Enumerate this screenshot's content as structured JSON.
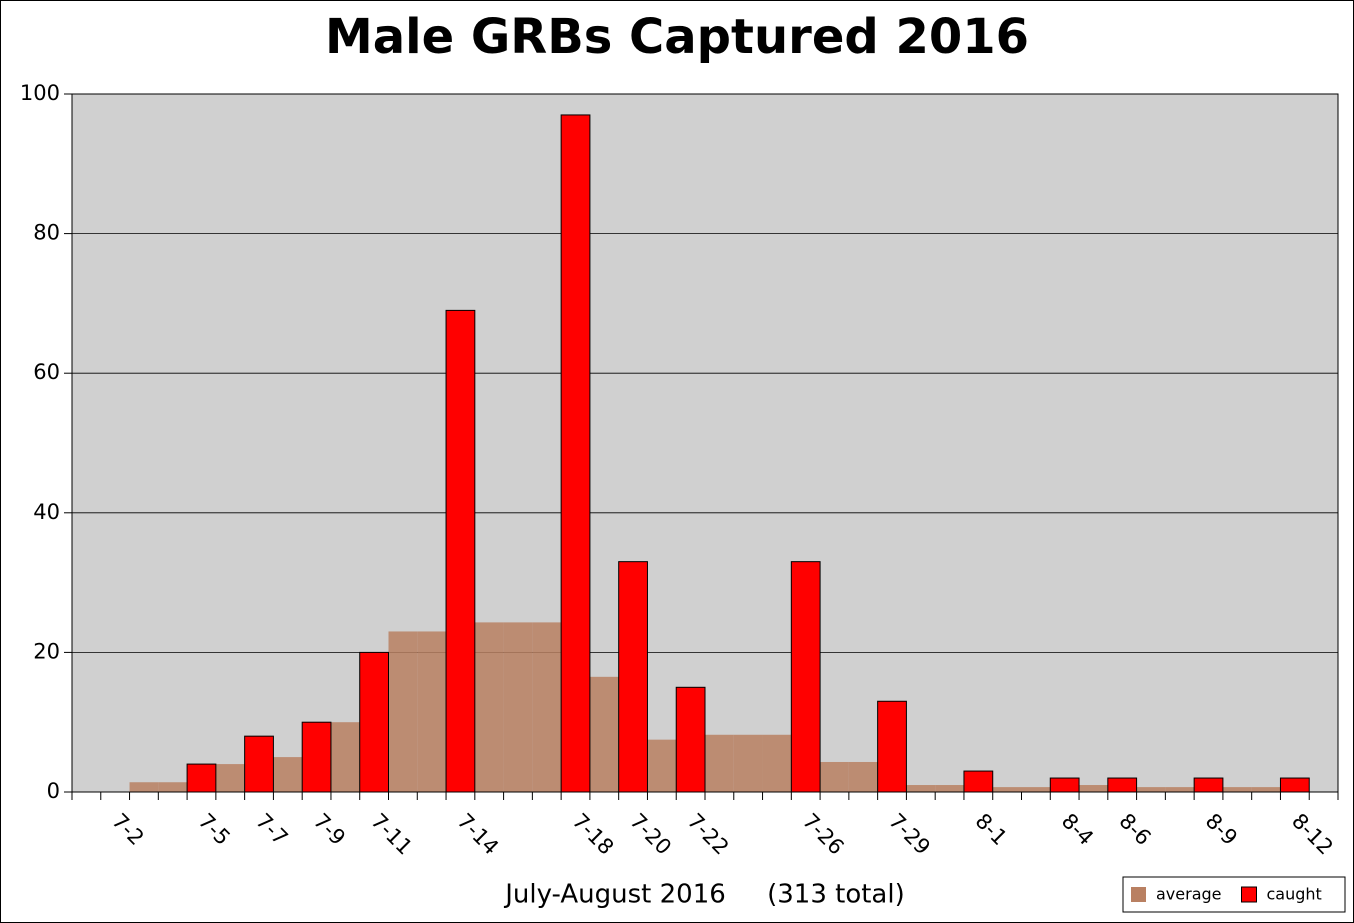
{
  "chart_data": {
    "type": "bar",
    "title": "Male GRBs Captured 2016",
    "x_label": "July-August 2016     (313 total)",
    "categories": [
      null,
      "7-2",
      null,
      null,
      "7-5",
      null,
      "7-7",
      null,
      "7-9",
      null,
      "7-11",
      null,
      null,
      "7-14",
      null,
      null,
      null,
      "7-18",
      null,
      "7-20",
      null,
      "7-22",
      null,
      null,
      null,
      "7-26",
      null,
      null,
      "7-29",
      null,
      null,
      "8-1",
      null,
      null,
      "8-4",
      null,
      "8-6",
      null,
      null,
      "8-9",
      null,
      null,
      "8-12",
      null
    ],
    "series": [
      {
        "name": "average",
        "color": "#b98062",
        "values": [
          null,
          null,
          1.4,
          1.4,
          null,
          4,
          null,
          5,
          null,
          10,
          null,
          23,
          23,
          null,
          24.3,
          24.3,
          24.3,
          null,
          16.5,
          null,
          7.5,
          null,
          8.2,
          8.2,
          8.2,
          null,
          4.3,
          4.3,
          null,
          1,
          1,
          null,
          0.7,
          0.7,
          null,
          1,
          null,
          0.7,
          0.7,
          null,
          0.7,
          0.7,
          null,
          null
        ]
      },
      {
        "name": "caught",
        "color": "#ff0000",
        "values": [
          null,
          null,
          null,
          null,
          4,
          null,
          8,
          null,
          10,
          null,
          20,
          null,
          null,
          69,
          null,
          null,
          null,
          97,
          null,
          33,
          null,
          15,
          null,
          null,
          null,
          33,
          null,
          null,
          13,
          null,
          null,
          3,
          null,
          null,
          2,
          null,
          2,
          null,
          null,
          2,
          null,
          null,
          2,
          null
        ]
      }
    ],
    "ylim": [
      0,
      100
    ],
    "yticks": [
      0,
      20,
      40,
      60,
      80,
      100
    ],
    "grid": true,
    "legend": "bottom-right",
    "overlap": true
  }
}
